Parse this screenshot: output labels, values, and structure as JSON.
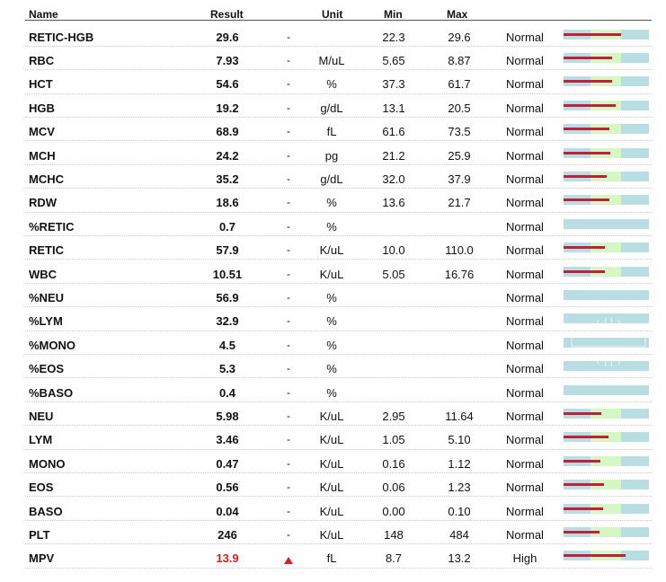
{
  "header": {
    "name": "Name",
    "result": "Result",
    "unit": "Unit",
    "min": "Min",
    "max": "Max"
  },
  "colors": {
    "range_bar": "#b8dde2",
    "normal_zone": "#d4f7c4",
    "result_marker": "#c0203a",
    "high_value": "#d42020"
  },
  "rows": [
    {
      "name": "RETIC-HGB",
      "result": "29.6",
      "flag": "-",
      "unit": "",
      "min": "22.3",
      "max": "29.6",
      "status": "Normal",
      "value": 29.6,
      "lo": 22.3,
      "hi": 29.6
    },
    {
      "name": "RBC",
      "result": "7.93",
      "flag": "-",
      "unit": "M/uL",
      "min": "5.65",
      "max": "8.87",
      "status": "Normal",
      "value": 7.93,
      "lo": 5.65,
      "hi": 8.87
    },
    {
      "name": "HCT",
      "result": "54.6",
      "flag": "-",
      "unit": "%",
      "min": "37.3",
      "max": "61.7",
      "status": "Normal",
      "value": 54.6,
      "lo": 37.3,
      "hi": 61.7
    },
    {
      "name": "HGB",
      "result": "19.2",
      "flag": "-",
      "unit": "g/dL",
      "min": "13.1",
      "max": "20.5",
      "status": "Normal",
      "value": 19.2,
      "lo": 13.1,
      "hi": 20.5
    },
    {
      "name": "MCV",
      "result": "68.9",
      "flag": "-",
      "unit": "fL",
      "min": "61.6",
      "max": "73.5",
      "status": "Normal",
      "value": 68.9,
      "lo": 61.6,
      "hi": 73.5
    },
    {
      "name": "MCH",
      "result": "24.2",
      "flag": "-",
      "unit": "pg",
      "min": "21.2",
      "max": "25.9",
      "status": "Normal",
      "value": 24.2,
      "lo": 21.2,
      "hi": 25.9
    },
    {
      "name": "MCHC",
      "result": "35.2",
      "flag": "-",
      "unit": "g/dL",
      "min": "32.0",
      "max": "37.9",
      "status": "Normal",
      "value": 35.2,
      "lo": 32.0,
      "hi": 37.9
    },
    {
      "name": "RDW",
      "result": "18.6",
      "flag": "-",
      "unit": "%",
      "min": "13.6",
      "max": "21.7",
      "status": "Normal",
      "value": 18.6,
      "lo": 13.6,
      "hi": 21.7
    },
    {
      "name": "%RETIC",
      "result": "0.7",
      "flag": "-",
      "unit": "%",
      "min": "",
      "max": "",
      "status": "Normal",
      "value": null,
      "lo": null,
      "hi": null
    },
    {
      "name": "RETIC",
      "result": "57.9",
      "flag": "-",
      "unit": "K/uL",
      "min": "10.0",
      "max": "110.0",
      "status": "Normal",
      "value": 57.9,
      "lo": 10.0,
      "hi": 110.0
    },
    {
      "name": "WBC",
      "result": "10.51",
      "flag": "-",
      "unit": "K/uL",
      "min": "5.05",
      "max": "16.76",
      "status": "Normal",
      "value": 10.51,
      "lo": 5.05,
      "hi": 16.76
    },
    {
      "name": "%NEU",
      "result": "56.9",
      "flag": "-",
      "unit": "%",
      "min": "",
      "max": "",
      "status": "Normal",
      "value": null,
      "lo": null,
      "hi": null
    },
    {
      "name": "%LYM",
      "result": "32.9",
      "flag": "-",
      "unit": "%",
      "min": "",
      "max": "",
      "status": "Normal",
      "value": null,
      "lo": null,
      "hi": null
    },
    {
      "name": "%MONO",
      "result": "4.5",
      "flag": "-",
      "unit": "%",
      "min": "",
      "max": "",
      "status": "Normal",
      "value": null,
      "lo": null,
      "hi": null
    },
    {
      "name": "%EOS",
      "result": "5.3",
      "flag": "-",
      "unit": "%",
      "min": "",
      "max": "",
      "status": "Normal",
      "value": null,
      "lo": null,
      "hi": null
    },
    {
      "name": "%BASO",
      "result": "0.4",
      "flag": "-",
      "unit": "%",
      "min": "",
      "max": "",
      "status": "Normal",
      "value": null,
      "lo": null,
      "hi": null
    },
    {
      "name": "NEU",
      "result": "5.98",
      "flag": "-",
      "unit": "K/uL",
      "min": "2.95",
      "max": "11.64",
      "status": "Normal",
      "value": 5.98,
      "lo": 2.95,
      "hi": 11.64
    },
    {
      "name": "LYM",
      "result": "3.46",
      "flag": "-",
      "unit": "K/uL",
      "min": "1.05",
      "max": "5.10",
      "status": "Normal",
      "value": 3.46,
      "lo": 1.05,
      "hi": 5.1
    },
    {
      "name": "MONO",
      "result": "0.47",
      "flag": "-",
      "unit": "K/uL",
      "min": "0.16",
      "max": "1.12",
      "status": "Normal",
      "value": 0.47,
      "lo": 0.16,
      "hi": 1.12
    },
    {
      "name": "EOS",
      "result": "0.56",
      "flag": "-",
      "unit": "K/uL",
      "min": "0.06",
      "max": "1.23",
      "status": "Normal",
      "value": 0.56,
      "lo": 0.06,
      "hi": 1.23
    },
    {
      "name": "BASO",
      "result": "0.04",
      "flag": "-",
      "unit": "K/uL",
      "min": "0.00",
      "max": "0.10",
      "status": "Normal",
      "value": 0.04,
      "lo": 0.0,
      "hi": 0.1
    },
    {
      "name": "PLT",
      "result": "246",
      "flag": "-",
      "unit": "K/uL",
      "min": "148",
      "max": "484",
      "status": "Normal",
      "value": 246,
      "lo": 148,
      "hi": 484
    },
    {
      "name": "MPV",
      "result": "13.9",
      "flag": "up-triangle-icon",
      "unit": "fL",
      "min": "8.7",
      "max": "13.2",
      "status": "High",
      "value": 13.9,
      "lo": 8.7,
      "hi": 13.2
    }
  ]
}
